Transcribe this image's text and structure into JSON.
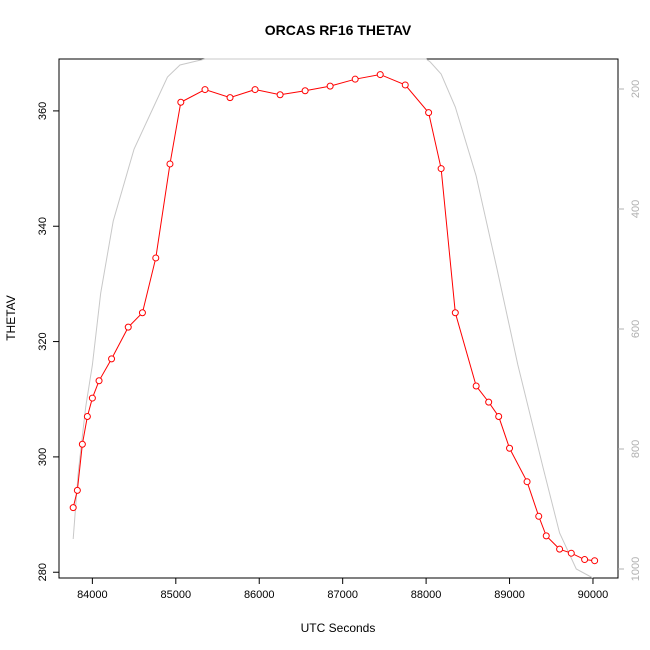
{
  "chart_data": {
    "type": "line",
    "title": "ORCAS RF16 THETAV",
    "xlabel": "UTC Seconds",
    "ylabel": "THETAV",
    "xlim": [
      83600,
      90300
    ],
    "ylim": [
      279,
      369
    ],
    "x_ticks": [
      84000,
      85000,
      86000,
      87000,
      88000,
      89000,
      90000
    ],
    "y_ticks": [
      280,
      300,
      320,
      340,
      360
    ],
    "y2_ticks": [
      200,
      400,
      600,
      800,
      1000
    ],
    "y2_lim": [
      1015,
      150
    ],
    "grid": false,
    "legend": "none",
    "colors": {
      "thetav": "#ff0000",
      "pressure": "#c8c8c8",
      "axis": "#000000",
      "right_axis": "#b0b0b0"
    },
    "series": [
      {
        "key": "thetav",
        "x": [
          83770,
          83820,
          83880,
          83940,
          84000,
          84080,
          84230,
          84430,
          84600,
          84760,
          84930,
          85060,
          85350,
          85650,
          85950,
          86250,
          86550,
          86850,
          87150,
          87450,
          87750,
          88030,
          88180,
          88350,
          88600,
          88750,
          88870,
          89000,
          89210,
          89350,
          89440,
          89600,
          89740,
          89900,
          90020
        ],
        "values": [
          291.2,
          294.2,
          302.2,
          307.0,
          310.2,
          313.2,
          317.0,
          322.5,
          325.0,
          334.5,
          350.8,
          361.5,
          363.7,
          362.3,
          363.7,
          362.8,
          363.5,
          364.3,
          365.5,
          366.3,
          364.5,
          359.7,
          350.0,
          325.0,
          312.3,
          309.5,
          307.0,
          301.5,
          295.7,
          289.7,
          286.3,
          284.0,
          283.3,
          282.2,
          282.0
        ]
      },
      {
        "key": "pressure",
        "x": [
          83770,
          83830,
          83920,
          84000,
          84100,
          84250,
          84500,
          84700,
          84900,
          85050,
          85350,
          86000,
          87000,
          88000,
          88050,
          88180,
          88350,
          88600,
          88850,
          89100,
          89400,
          89600,
          89800,
          90000
        ],
        "values": [
          950,
          840,
          730,
          660,
          540,
          420,
          300,
          240,
          180,
          160,
          150,
          150,
          150,
          150,
          155,
          175,
          230,
          345,
          500,
          660,
          830,
          940,
          1000,
          1070
        ]
      }
    ]
  }
}
